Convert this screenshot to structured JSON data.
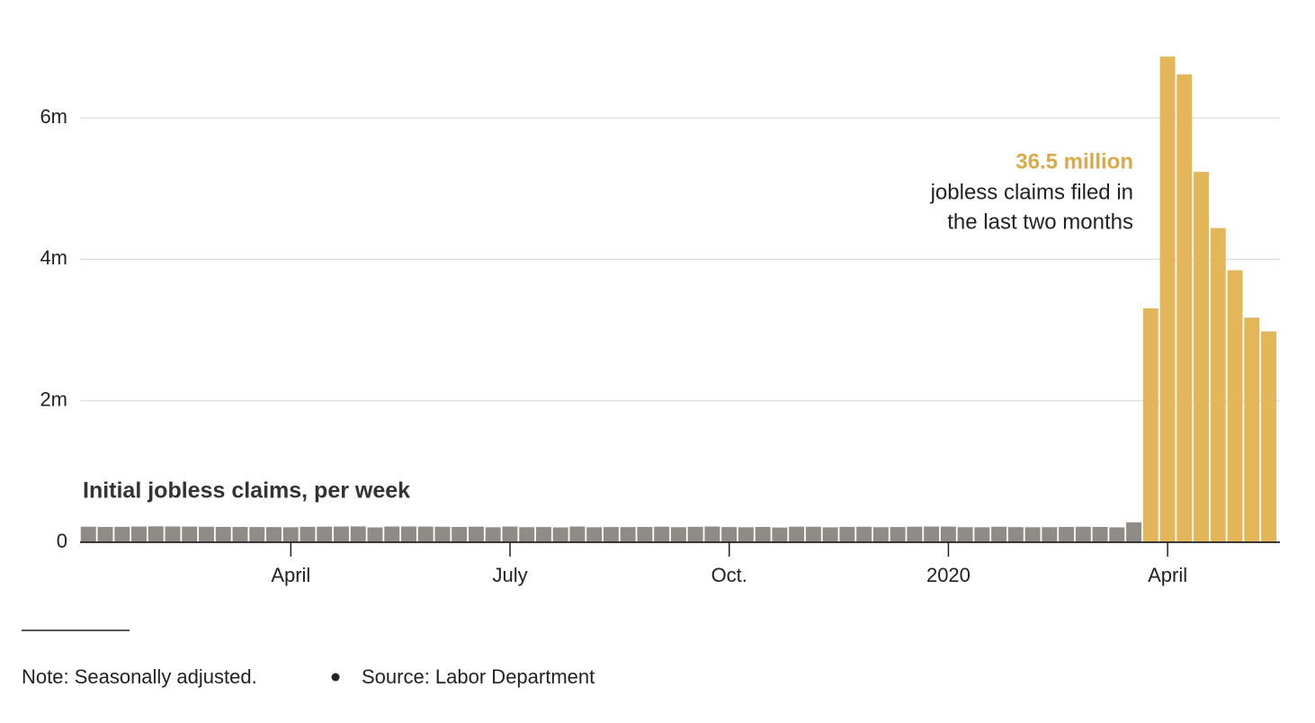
{
  "chart_data": {
    "type": "bar",
    "label": "Initial jobless claims, per week",
    "annotation": {
      "title": "36.5 million",
      "lines": [
        "jobless claims filed in",
        "the last two months"
      ],
      "title_color": "#d9a94a"
    },
    "categories": [
      null,
      null,
      null,
      null,
      null,
      null,
      null,
      null,
      null,
      null,
      null,
      null,
      "April",
      null,
      null,
      null,
      null,
      null,
      null,
      null,
      null,
      null,
      null,
      null,
      null,
      "July",
      null,
      null,
      null,
      null,
      null,
      null,
      null,
      null,
      null,
      null,
      null,
      null,
      "Oct.",
      null,
      null,
      null,
      null,
      null,
      null,
      null,
      null,
      null,
      null,
      null,
      null,
      "2020",
      null,
      null,
      null,
      null,
      null,
      null,
      null,
      null,
      null,
      null,
      null,
      null,
      "April",
      null,
      null,
      null,
      null,
      null,
      null
    ],
    "values": [
      220000,
      216000,
      218000,
      222000,
      225000,
      223000,
      221000,
      219000,
      217000,
      216000,
      215000,
      214000,
      212000,
      218000,
      220000,
      222000,
      224000,
      210000,
      222000,
      223000,
      221000,
      219000,
      216000,
      220000,
      212000,
      222000,
      213000,
      215000,
      210000,
      222000,
      212000,
      215000,
      214000,
      216000,
      220000,
      213000,
      218000,
      222000,
      215000,
      212000,
      216000,
      208000,
      220000,
      219000,
      211000,
      217000,
      219000,
      213000,
      215000,
      220000,
      222000,
      221000,
      213000,
      212000,
      219000,
      214000,
      212000,
      213000,
      216000,
      219000,
      216000,
      211000,
      282000,
      3307000,
      6867000,
      6615000,
      5237000,
      4442000,
      3846000,
      3176000,
      2981000
    ],
    "colors": [
      "#8f8b87",
      "#8f8b87",
      "#8f8b87",
      "#8f8b87",
      "#8f8b87",
      "#8f8b87",
      "#8f8b87",
      "#8f8b87",
      "#8f8b87",
      "#8f8b87",
      "#8f8b87",
      "#8f8b87",
      "#8f8b87",
      "#8f8b87",
      "#8f8b87",
      "#8f8b87",
      "#8f8b87",
      "#8f8b87",
      "#8f8b87",
      "#8f8b87",
      "#8f8b87",
      "#8f8b87",
      "#8f8b87",
      "#8f8b87",
      "#8f8b87",
      "#8f8b87",
      "#8f8b87",
      "#8f8b87",
      "#8f8b87",
      "#8f8b87",
      "#8f8b87",
      "#8f8b87",
      "#8f8b87",
      "#8f8b87",
      "#8f8b87",
      "#8f8b87",
      "#8f8b87",
      "#8f8b87",
      "#8f8b87",
      "#8f8b87",
      "#8f8b87",
      "#8f8b87",
      "#8f8b87",
      "#8f8b87",
      "#8f8b87",
      "#8f8b87",
      "#8f8b87",
      "#8f8b87",
      "#8f8b87",
      "#8f8b87",
      "#8f8b87",
      "#8f8b87",
      "#8f8b87",
      "#8f8b87",
      "#8f8b87",
      "#8f8b87",
      "#8f8b87",
      "#8f8b87",
      "#8f8b87",
      "#8f8b87",
      "#8f8b87",
      "#8f8b87",
      "#8f8b87",
      "#e3b65a",
      "#e3b65a",
      "#e3b65a",
      "#e3b65a",
      "#e3b65a",
      "#e3b65a",
      "#e3b65a",
      "#e3b65a"
    ],
    "ylim": [
      0,
      7000000
    ],
    "yticks": [
      0,
      {
        "value": 2000000,
        "label": "2m"
      },
      {
        "value": 4000000,
        "label": "4m"
      },
      {
        "value": 6000000,
        "label": "6m"
      }
    ],
    "grid": true
  },
  "footer": {
    "note": "Note: Seasonally adjusted.",
    "source": "Source: Labor Department"
  }
}
